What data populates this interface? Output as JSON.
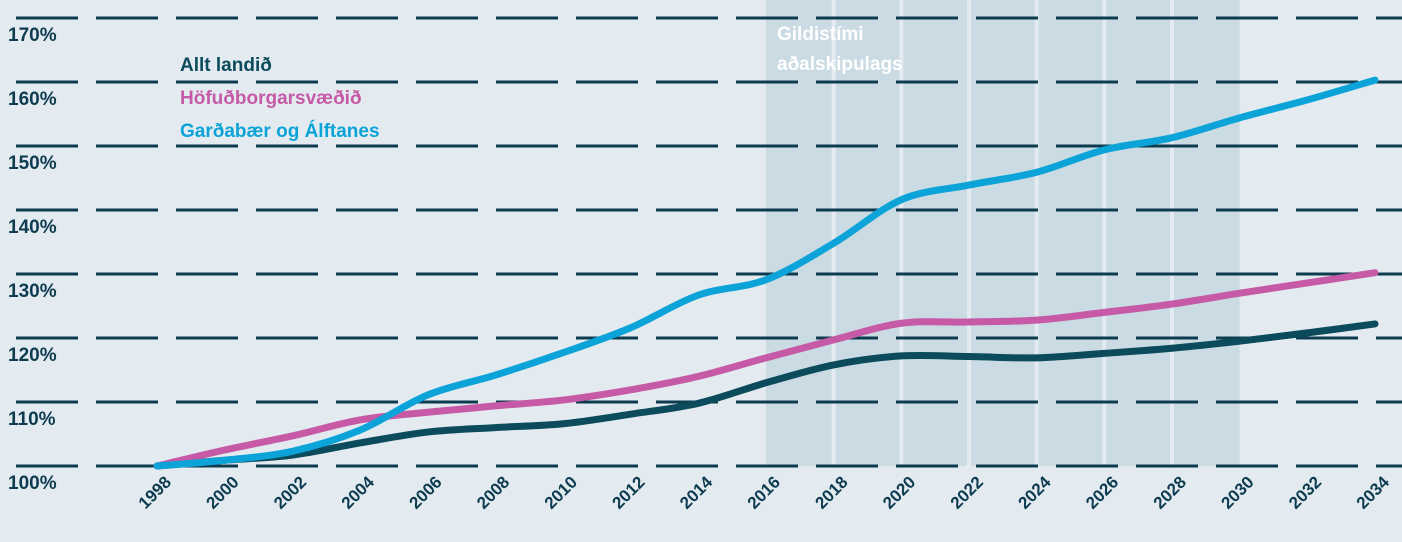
{
  "chart_data": {
    "type": "line",
    "x": [
      1998,
      2000,
      2002,
      2004,
      2006,
      2008,
      2010,
      2012,
      2014,
      2016,
      2018,
      2020,
      2022,
      2024,
      2026,
      2028,
      2030,
      2032,
      2034
    ],
    "series": [
      {
        "name": "Allt landið",
        "color": "#0b4b5c",
        "values": [
          100,
          100.9,
          101.7,
          103.6,
          105.3,
          106,
          106.6,
          108.1,
          109.8,
          113,
          115.8,
          117.2,
          117.1,
          116.9,
          117.6,
          118.4,
          119.5,
          120.8,
          122.2
        ]
      },
      {
        "name": "Höfuðborgarsvæðið",
        "color": "#c65aa6",
        "values": [
          100,
          102.5,
          104.7,
          107.2,
          108.4,
          109.4,
          110.3,
          111.9,
          114,
          116.9,
          119.7,
          122.3,
          122.5,
          122.8,
          124,
          125.3,
          127,
          128.6,
          130.2
        ]
      },
      {
        "name": "Garðabær og Álftanes",
        "color": "#0ca4d8",
        "values": [
          100,
          100.9,
          102.3,
          105.6,
          111.1,
          114.2,
          117.7,
          121.6,
          126.7,
          129.1,
          134.8,
          141.6,
          143.9,
          145.9,
          149.4,
          151.3,
          154.4,
          157.2,
          160.3
        ]
      }
    ],
    "xlim": [
      1998,
      2034
    ],
    "xticks": [
      1998,
      2000,
      2002,
      2004,
      2006,
      2008,
      2010,
      2012,
      2014,
      2016,
      2018,
      2020,
      2022,
      2024,
      2026,
      2028,
      2030,
      2032,
      2034
    ],
    "ylim": [
      100,
      170
    ],
    "yticks": [
      {
        "value": 100,
        "label": "100%"
      },
      {
        "value": 110,
        "label": "110%"
      },
      {
        "value": 120,
        "label": "120%"
      },
      {
        "value": 130,
        "label": "130%"
      },
      {
        "value": 140,
        "label": "140%"
      },
      {
        "value": 150,
        "label": "150%"
      },
      {
        "value": 160,
        "label": "160%"
      },
      {
        "value": 170,
        "label": "170%"
      }
    ],
    "grid": true,
    "shaded_range": [
      2016,
      2030
    ],
    "shaded_color": "#cbdbe4",
    "annotation": [
      "Gildistími",
      "aðalskipulags"
    ]
  }
}
